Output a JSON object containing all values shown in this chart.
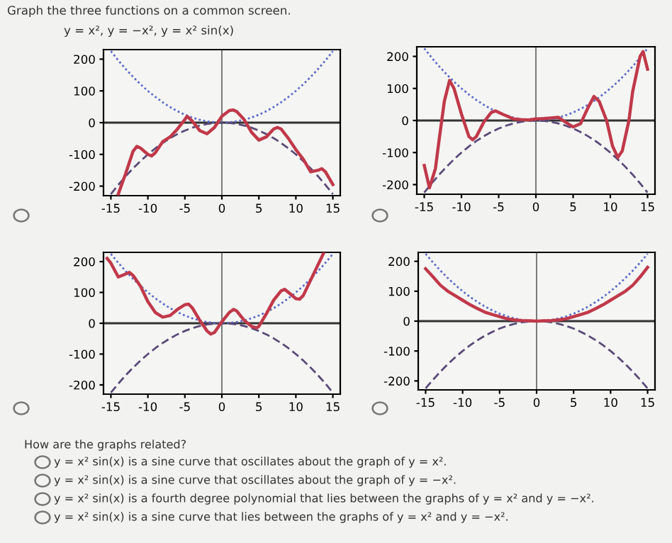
{
  "chart_data": [
    {
      "type": "line",
      "title": "Graph the three functions on a common screen.",
      "subtitle": "y = x², y = −x², y = x² sin(x)",
      "xlim": [
        -16,
        16
      ],
      "ylim": [
        -230,
        230
      ],
      "xticks": [
        -15,
        -10,
        -5,
        0,
        5,
        10,
        15
      ],
      "yticks": [
        -200,
        -100,
        0,
        100,
        200
      ],
      "grid": false,
      "ref_lines": [
        {
          "axis": "x",
          "value": 0
        },
        {
          "axis": "y",
          "value": 0
        }
      ],
      "series": [
        {
          "color": "#5a6ac8",
          "line_style": "dotted",
          "x": [
            -15,
            -14,
            -13,
            -12,
            -11,
            -10,
            -9,
            -8,
            -7,
            -6,
            -5,
            -4,
            -3,
            -2,
            -1,
            0,
            1,
            2,
            3,
            4,
            5,
            6,
            7,
            8,
            9,
            10,
            11,
            12,
            13,
            14,
            15
          ],
          "values": [
            225,
            196,
            169,
            144,
            121,
            100,
            81,
            64,
            49,
            36,
            25,
            16,
            9,
            4,
            1,
            0,
            1,
            4,
            9,
            16,
            25,
            36,
            49,
            64,
            81,
            100,
            121,
            144,
            169,
            196,
            225
          ]
        },
        {
          "color": "#5a4a78",
          "line_style": "dashed",
          "x": [
            -15,
            -14,
            -13,
            -12,
            -11,
            -10,
            -9,
            -8,
            -7,
            -6,
            -5,
            -4,
            -3,
            -2,
            -1,
            0,
            1,
            2,
            3,
            4,
            5,
            6,
            7,
            8,
            9,
            10,
            11,
            12,
            13,
            14,
            15
          ],
          "values": [
            -225,
            -196,
            -169,
            -144,
            -121,
            -100,
            -81,
            -64,
            -49,
            -36,
            -25,
            -16,
            -9,
            -4,
            -1,
            0,
            -1,
            -4,
            -9,
            -16,
            -25,
            -36,
            -49,
            -64,
            -81,
            -100,
            -121,
            -144,
            -169,
            -196,
            -225
          ]
        },
        {
          "color": "#c0394a",
          "line_style": "solid",
          "x": [
            -14,
            -13,
            -12,
            -11.5,
            -11,
            -10,
            -9.5,
            -9,
            -8,
            -7,
            -6,
            -5,
            -4.7,
            -4,
            -3,
            -2,
            -1,
            0,
            1,
            1.5,
            2,
            3,
            4,
            5,
            6,
            7,
            7.5,
            8,
            9,
            10,
            11,
            12,
            13,
            13.5,
            14,
            15
          ],
          "values": [
            -225,
            -160,
            -90,
            -75,
            -80,
            -100,
            -105,
            -95,
            -60,
            -45,
            -20,
            10,
            20,
            5,
            -25,
            -35,
            -15,
            20,
            38,
            40,
            35,
            10,
            -30,
            -55,
            -45,
            -20,
            -15,
            -20,
            -50,
            -85,
            -115,
            -155,
            -150,
            -145,
            -155,
            -195
          ]
        }
      ]
    },
    {
      "type": "line",
      "xlim": [
        -16,
        16
      ],
      "ylim": [
        -230,
        230
      ],
      "xticks": [
        -15,
        -10,
        -5,
        0,
        5,
        10,
        15
      ],
      "yticks": [
        -200,
        -100,
        0,
        100,
        200
      ],
      "grid": false,
      "ref_lines": [
        {
          "axis": "x",
          "value": 0
        },
        {
          "axis": "y",
          "value": 0
        }
      ],
      "series": [
        {
          "color": "#5a6ac8",
          "line_style": "dotted",
          "x": [
            -15,
            -14,
            -13,
            -12,
            -11,
            -10,
            -9,
            -8,
            -7,
            -6,
            -5,
            -4,
            -3,
            -2,
            -1,
            0,
            1,
            2,
            3,
            4,
            5,
            6,
            7,
            8,
            9,
            10,
            11,
            12,
            13,
            14,
            15
          ],
          "values": [
            225,
            196,
            169,
            144,
            121,
            100,
            81,
            64,
            49,
            36,
            25,
            16,
            9,
            4,
            1,
            0,
            1,
            4,
            9,
            16,
            25,
            36,
            49,
            64,
            81,
            100,
            121,
            144,
            169,
            196,
            225
          ]
        },
        {
          "color": "#5a4a78",
          "line_style": "dashed",
          "x": [
            -15,
            -14,
            -13,
            -12,
            -11,
            -10,
            -9,
            -8,
            -7,
            -6,
            -5,
            -4,
            -3,
            -2,
            -1,
            0,
            1,
            2,
            3,
            4,
            5,
            6,
            7,
            8,
            9,
            10,
            11,
            12,
            13,
            14,
            15
          ],
          "values": [
            -225,
            -196,
            -169,
            -144,
            -121,
            -100,
            -81,
            -64,
            -49,
            -36,
            -25,
            -16,
            -9,
            -4,
            -1,
            0,
            -1,
            -4,
            -9,
            -16,
            -25,
            -36,
            -49,
            -64,
            -81,
            -100,
            -121,
            -144,
            -169,
            -196,
            -225
          ]
        },
        {
          "color": "#c0394a",
          "line_style": "solid",
          "x": [
            -15,
            -14.3,
            -13.5,
            -13,
            -12.3,
            -11.6,
            -11,
            -10,
            -9,
            -8.5,
            -8,
            -7,
            -6,
            -5.4,
            -4.5,
            -4,
            -3,
            -2,
            -1,
            0,
            1,
            2,
            3,
            4,
            5,
            6,
            7,
            7.8,
            8.5,
            9.5,
            10.3,
            11,
            11.6,
            12.5,
            13,
            14,
            14.4,
            15
          ],
          "values": [
            -140,
            -210,
            -150,
            -60,
            60,
            125,
            100,
            20,
            -50,
            -60,
            -50,
            -5,
            25,
            30,
            20,
            15,
            5,
            3,
            2,
            5,
            6,
            8,
            10,
            -5,
            -20,
            -10,
            40,
            75,
            60,
            0,
            -80,
            -115,
            -95,
            0,
            90,
            200,
            215,
            160
          ]
        }
      ]
    },
    {
      "type": "line",
      "xlim": [
        -16,
        16
      ],
      "ylim": [
        -230,
        230
      ],
      "xticks": [
        -15,
        -10,
        -5,
        0,
        5,
        10,
        15
      ],
      "yticks": [
        -200,
        -100,
        0,
        100,
        200
      ],
      "grid": false,
      "ref_lines": [
        {
          "axis": "x",
          "value": 0
        },
        {
          "axis": "y",
          "value": 0
        }
      ],
      "series": [
        {
          "color": "#5a6ac8",
          "line_style": "dotted",
          "x": [
            -15,
            -14,
            -13,
            -12,
            -11,
            -10,
            -9,
            -8,
            -7,
            -6,
            -5,
            -4,
            -3,
            -2,
            -1,
            0,
            1,
            2,
            3,
            4,
            5,
            6,
            7,
            8,
            9,
            10,
            11,
            12,
            13,
            14,
            15
          ],
          "values": [
            225,
            196,
            169,
            144,
            121,
            100,
            81,
            64,
            49,
            36,
            25,
            16,
            9,
            4,
            1,
            0,
            1,
            4,
            9,
            16,
            25,
            36,
            49,
            64,
            81,
            100,
            121,
            144,
            169,
            196,
            225
          ]
        },
        {
          "color": "#5a4a78",
          "line_style": "dashed",
          "x": [
            -15,
            -14,
            -13,
            -12,
            -11,
            -10,
            -9,
            -8,
            -7,
            -6,
            -5,
            -4,
            -3,
            -2,
            -1,
            0,
            1,
            2,
            3,
            4,
            5,
            6,
            7,
            8,
            9,
            10,
            11,
            12,
            13,
            14,
            15
          ],
          "values": [
            -225,
            -196,
            -169,
            -144,
            -121,
            -100,
            -81,
            -64,
            -49,
            -36,
            -25,
            -16,
            -9,
            -4,
            -1,
            0,
            -1,
            -4,
            -9,
            -16,
            -25,
            -36,
            -49,
            -64,
            -81,
            -100,
            -121,
            -144,
            -169,
            -196,
            -225
          ]
        },
        {
          "color": "#c0394a",
          "line_style": "solid",
          "x": [
            -15.5,
            -15,
            -14,
            -13,
            -12.5,
            -12,
            -11,
            -10,
            -9,
            -8,
            -7,
            -6,
            -5,
            -4.5,
            -4,
            -3,
            -2,
            -1.5,
            -1,
            0,
            1,
            1.6,
            2,
            3,
            4,
            4.7,
            5,
            6,
            7,
            8,
            8.5,
            9,
            10,
            10.5,
            11,
            12,
            13,
            13.8
          ],
          "values": [
            210,
            195,
            150,
            160,
            165,
            155,
            120,
            70,
            35,
            20,
            25,
            45,
            60,
            62,
            50,
            10,
            -25,
            -35,
            -30,
            5,
            35,
            45,
            40,
            10,
            -10,
            -15,
            -10,
            30,
            75,
            105,
            110,
            100,
            80,
            78,
            90,
            140,
            190,
            230
          ]
        }
      ]
    },
    {
      "type": "line",
      "xlim": [
        -16,
        16
      ],
      "ylim": [
        -230,
        230
      ],
      "xticks": [
        -15,
        -10,
        -5,
        0,
        5,
        10,
        15
      ],
      "yticks": [
        -200,
        -100,
        0,
        100,
        200
      ],
      "grid": false,
      "ref_lines": [
        {
          "axis": "x",
          "value": 0
        },
        {
          "axis": "y",
          "value": 0
        }
      ],
      "series": [
        {
          "color": "#5a6ac8",
          "line_style": "dotted",
          "x": [
            -15,
            -14,
            -13,
            -12,
            -11,
            -10,
            -9,
            -8,
            -7,
            -6,
            -5,
            -4,
            -3,
            -2,
            -1,
            0,
            1,
            2,
            3,
            4,
            5,
            6,
            7,
            8,
            9,
            10,
            11,
            12,
            13,
            14,
            15
          ],
          "values": [
            225,
            196,
            169,
            144,
            121,
            100,
            81,
            64,
            49,
            36,
            25,
            16,
            9,
            4,
            1,
            0,
            1,
            4,
            9,
            16,
            25,
            36,
            49,
            64,
            81,
            100,
            121,
            144,
            169,
            196,
            225
          ]
        },
        {
          "color": "#5a4a78",
          "line_style": "dashed",
          "x": [
            -15,
            -14,
            -13,
            -12,
            -11,
            -10,
            -9,
            -8,
            -7,
            -6,
            -5,
            -4,
            -3,
            -2,
            -1,
            0,
            1,
            2,
            3,
            4,
            5,
            6,
            7,
            8,
            9,
            10,
            11,
            12,
            13,
            14,
            15
          ],
          "values": [
            -225,
            -196,
            -169,
            -144,
            -121,
            -100,
            -81,
            -64,
            -49,
            -36,
            -25,
            -16,
            -9,
            -4,
            -1,
            0,
            -1,
            -4,
            -9,
            -16,
            -25,
            -36,
            -49,
            -64,
            -81,
            -100,
            -121,
            -144,
            -169,
            -196,
            -225
          ]
        },
        {
          "color": "#c0394a",
          "line_style": "solid",
          "x": [
            -15,
            -14,
            -13,
            -12,
            -11,
            -10,
            -9,
            -8,
            -7,
            -6,
            -5,
            -4,
            -3,
            -2,
            -1,
            0,
            1,
            2,
            3,
            4,
            5,
            6,
            7,
            8,
            9,
            10,
            11,
            12,
            13,
            14,
            15
          ],
          "values": [
            175,
            148,
            120,
            100,
            85,
            70,
            55,
            42,
            30,
            22,
            15,
            8,
            4,
            2,
            1,
            0,
            1,
            2,
            4,
            8,
            15,
            22,
            30,
            42,
            55,
            70,
            85,
            100,
            120,
            148,
            180
          ]
        }
      ]
    },
    {
      "type": "other",
      "title": "How are the graphs related?",
      "annotations": [
        "y = x² sin(x) is a sine curve that oscillates about the graph of y = x².",
        "y = x² sin(x) is a sine curve that oscillates about the graph of y = −x².",
        "y = x² sin(x) is a fourth degree polynomial that lies between the graphs of y = x² and y = −x².",
        "y = x² sin(x) is a sine curve that lies between the graphs of y = x² and y = −x²."
      ]
    }
  ]
}
